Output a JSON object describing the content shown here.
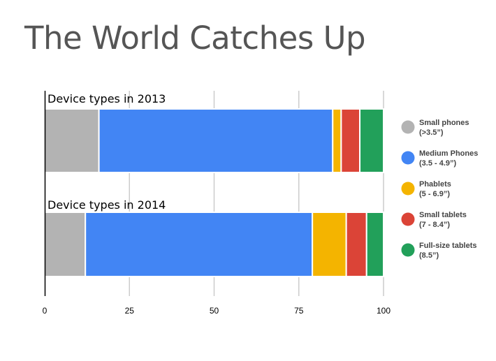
{
  "page": {
    "title": "The World Catches Up"
  },
  "chart_data": {
    "type": "bar",
    "orientation": "horizontal",
    "stacked": true,
    "title": "The World Catches Up",
    "xlabel": "",
    "ylabel": "",
    "xlim": [
      0,
      100
    ],
    "xticks": [
      0,
      25,
      50,
      75,
      100
    ],
    "grid": true,
    "legend_position": "right",
    "categories": [
      "Device types in 2013",
      "Device types in 2014"
    ],
    "series": [
      {
        "name": "Small phones",
        "name_detail": "(>3.5”)",
        "color": "#b3b3b3",
        "values": [
          16,
          12
        ]
      },
      {
        "name": "Medium Phones",
        "name_detail": "(3.5 - 4.9”)",
        "color": "#4285f4",
        "values": [
          69,
          67
        ]
      },
      {
        "name": "Phablets",
        "name_detail": "(5 - 6.9”)",
        "color": "#f4b400",
        "values": [
          2.5,
          10
        ]
      },
      {
        "name": "Small tablets",
        "name_detail": "(7 - 8.4”)",
        "color": "#db4437",
        "values": [
          5.5,
          6
        ]
      },
      {
        "name": "Full-size tablets",
        "name_detail": "(8.5”)",
        "color": "#22a05a",
        "values": [
          7,
          5
        ]
      }
    ]
  }
}
